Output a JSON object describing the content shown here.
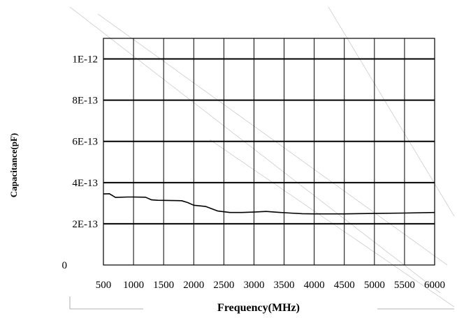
{
  "chart_data": {
    "type": "line",
    "title": "",
    "xlabel": "Frequency(MHz)",
    "ylabel": "Capacitance(pF)",
    "xlim": [
      500,
      6000
    ],
    "ylim": [
      0,
      1.1e-12
    ],
    "x_tick_labels": [
      "500",
      "1000",
      "1500",
      "2000",
      "2500",
      "3000",
      "3500",
      "4000",
      "4500",
      "5000",
      "5500",
      "6000"
    ],
    "y_tick_labels": [
      "0",
      "2E-13",
      "4E-13",
      "6E-13",
      "8E-13",
      "1E-12"
    ],
    "grid": true,
    "legend": "none",
    "colors": {
      "line": "#000000",
      "grid": "#000000",
      "background": "#ffffff"
    },
    "series": [
      {
        "x": [
          500,
          600,
          700,
          900,
          1000,
          1200,
          1300,
          1400,
          1800,
          1900,
          2000,
          2200,
          2400,
          2600,
          2800,
          3000,
          3200,
          3400,
          3600,
          3800,
          4000,
          4500,
          5000,
          5500,
          6000
        ],
        "y": [
          3.45e-13,
          3.46e-13,
          3.28e-13,
          3.3e-13,
          3.3e-13,
          3.29e-13,
          3.16e-13,
          3.14e-13,
          3.12e-13,
          3.03e-13,
          2.9e-13,
          2.84e-13,
          2.62e-13,
          2.55e-13,
          2.55e-13,
          2.57e-13,
          2.6e-13,
          2.56e-13,
          2.52e-13,
          2.49e-13,
          2.48e-13,
          2.48e-13,
          2.5e-13,
          2.52e-13,
          2.55e-13
        ]
      }
    ]
  }
}
